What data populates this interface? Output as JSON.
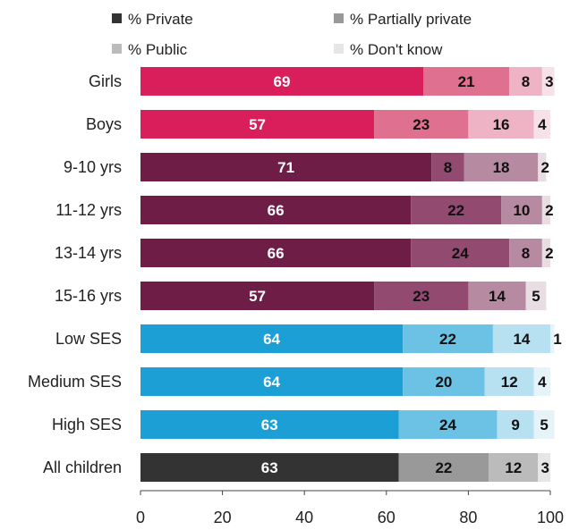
{
  "chart_data": {
    "type": "bar",
    "orientation": "horizontal",
    "stacked": true,
    "title": "",
    "xlabel": "",
    "ylabel": "",
    "xlim": [
      0,
      100
    ],
    "xticks": [
      "0",
      "20",
      "40",
      "60",
      "80",
      "100"
    ],
    "grid": false,
    "legend": {
      "placement": "top",
      "entries": [
        "% Private",
        "% Partially private",
        "% Public",
        "% Don't know"
      ],
      "swatch_colors": [
        "#333333",
        "#999999",
        "#bbbbbb",
        "#e6e6e6"
      ]
    },
    "categories": [
      "Girls",
      "Boys",
      "9-10 yrs",
      "11-12 yrs",
      "13-14 yrs",
      "15-16 yrs",
      "Low SES",
      "Medium SES",
      "High SES",
      "All children"
    ],
    "series": [
      {
        "name": "% Private",
        "values": [
          69,
          57,
          71,
          66,
          66,
          57,
          64,
          64,
          63,
          63
        ]
      },
      {
        "name": "% Partially private",
        "values": [
          21,
          23,
          8,
          22,
          24,
          23,
          22,
          20,
          24,
          22
        ]
      },
      {
        "name": "% Public",
        "values": [
          8,
          16,
          18,
          10,
          8,
          14,
          14,
          12,
          9,
          12
        ]
      },
      {
        "name": "% Don't know",
        "values": [
          3,
          4,
          2,
          2,
          2,
          5,
          1,
          4,
          5,
          3
        ]
      }
    ],
    "bar_colors": [
      [
        "#d81e5b",
        "#e0708f",
        "#eeb3c5",
        "#f7e1e8"
      ],
      [
        "#d81e5b",
        "#e0708f",
        "#eeb3c5",
        "#f7e1e8"
      ],
      [
        "#6e1d47",
        "#934a71",
        "#b68aa1",
        "#e8dde3"
      ],
      [
        "#6e1d47",
        "#934a71",
        "#b68aa1",
        "#e8dde3"
      ],
      [
        "#6e1d47",
        "#934a71",
        "#b68aa1",
        "#e8dde3"
      ],
      [
        "#6e1d47",
        "#934a71",
        "#b68aa1",
        "#e8dde3"
      ],
      [
        "#1b9fd4",
        "#6cc2e4",
        "#b7e0f1",
        "#e6f4fa"
      ],
      [
        "#1b9fd4",
        "#6cc2e4",
        "#b7e0f1",
        "#e6f4fa"
      ],
      [
        "#1b9fd4",
        "#6cc2e4",
        "#b7e0f1",
        "#e6f4fa"
      ],
      [
        "#333333",
        "#999999",
        "#bbbbbb",
        "#e6e6e6"
      ]
    ]
  }
}
